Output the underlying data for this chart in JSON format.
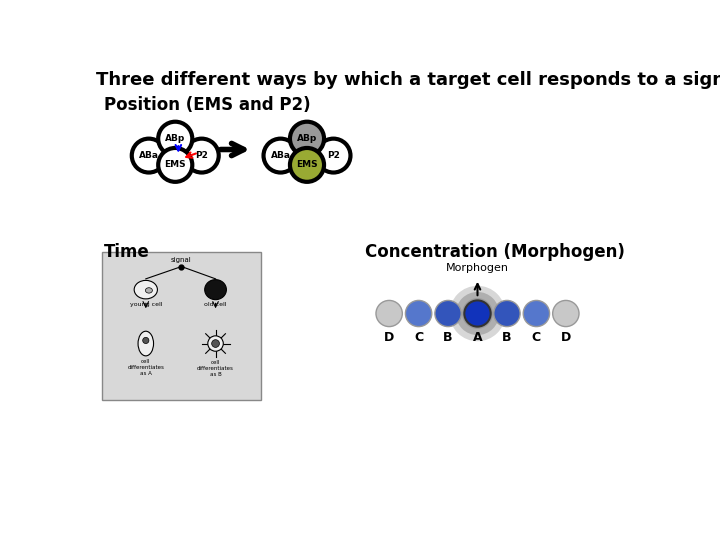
{
  "title": "Three different ways by which a target cell responds to a signal",
  "subtitle_position": "Position (EMS and P2)",
  "subtitle_time": "Time",
  "subtitle_concentration": "Concentration (Morphogen)",
  "morphogen_label": "Morphogen",
  "morph_labels": [
    "D",
    "C",
    "B",
    "A",
    "B",
    "C",
    "D"
  ],
  "morph_colors": [
    "#c8c8c8",
    "#5577cc",
    "#3355bb",
    "#1133bb",
    "#3355bb",
    "#5577cc",
    "#c8c8c8"
  ],
  "ems_color_right": "#99aa33",
  "abp_color_right": "#999999",
  "bg_color": "#ffffff",
  "title_fontsize": 13,
  "section_fontsize": 12,
  "cluster_r": 22,
  "cluster_lw": 3.0
}
